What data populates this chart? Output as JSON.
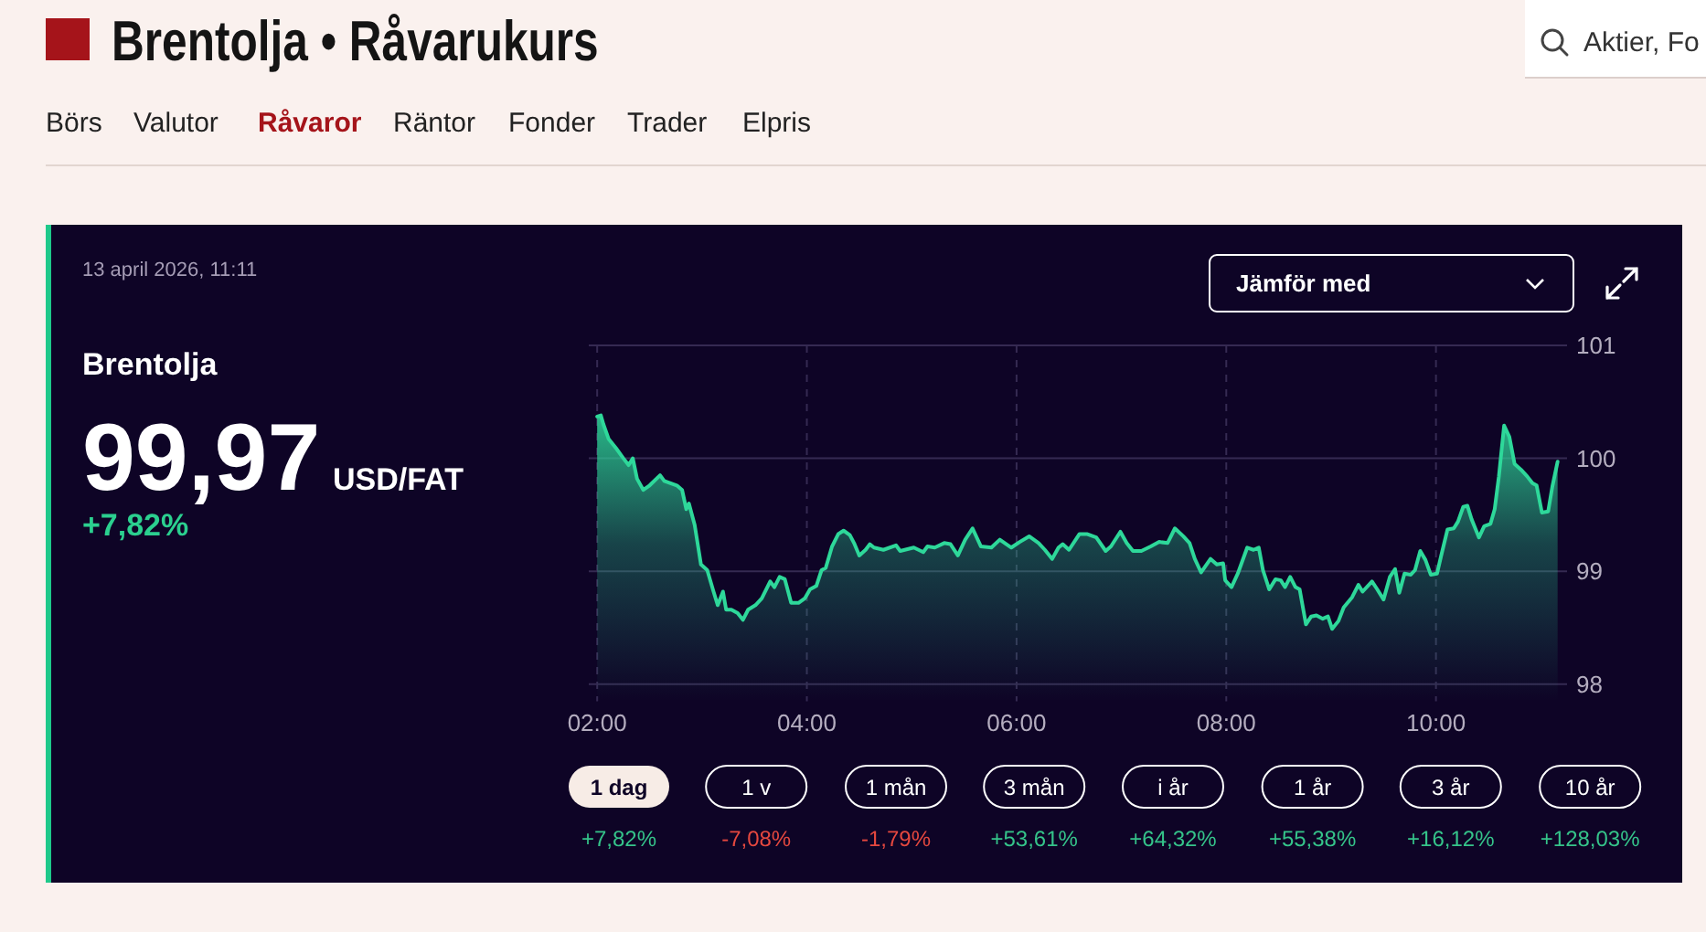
{
  "chart_data": {
    "type": "area",
    "title": "Brentolja • Råvarukurs",
    "annotations": [
      "Börs",
      "Valutor",
      "Råvaror",
      "Räntor",
      "Fonder",
      "Trader",
      "Elpris",
      "Aktier, Fo",
      "13 april 2026, 11:11",
      "Brentolja",
      "99,97",
      "USD/FAT",
      "+7,82%",
      "Jämför med",
      "1 dag",
      "1 v",
      "1 mån",
      "3 mån",
      "i år",
      "1 år",
      "3 år",
      "10 år",
      "+7,82%",
      "-7,08%",
      "-1,79%",
      "+53,61%",
      "+64,32%",
      "+55,38%",
      "+16,12%",
      "+128,03%"
    ],
    "x": [
      2.0,
      2.035,
      2.06,
      2.11,
      2.18,
      2.25,
      2.3,
      2.34,
      2.38,
      2.44,
      2.5,
      2.6,
      2.64,
      2.7,
      2.76,
      2.81,
      2.85,
      2.875,
      2.93,
      2.99,
      3.05,
      3.11,
      3.15,
      3.2,
      3.23,
      3.28,
      3.34,
      3.39,
      3.44,
      3.51,
      3.57,
      3.65,
      3.69,
      3.74,
      3.79,
      3.85,
      3.92,
      3.98,
      4.03,
      4.09,
      4.14,
      4.18,
      4.24,
      4.3,
      4.35,
      4.41,
      4.45,
      4.5,
      4.56,
      4.6,
      4.64,
      4.73,
      4.85,
      4.89,
      5.02,
      5.11,
      5.15,
      5.22,
      5.31,
      5.37,
      5.44,
      5.51,
      5.58,
      5.66,
      5.76,
      5.84,
      5.95,
      6.03,
      6.12,
      6.21,
      6.27,
      6.34,
      6.4,
      6.44,
      6.5,
      6.6,
      6.67,
      6.76,
      6.85,
      6.9,
      6.99,
      7.05,
      7.11,
      7.19,
      7.28,
      7.36,
      7.44,
      7.51,
      7.59,
      7.65,
      7.7,
      7.76,
      7.85,
      7.91,
      7.97,
      7.99,
      8.05,
      8.11,
      8.2,
      8.26,
      8.31,
      8.35,
      8.41,
      8.47,
      8.52,
      8.56,
      8.61,
      8.66,
      8.7,
      8.76,
      8.81,
      8.86,
      8.92,
      8.97,
      9.01,
      9.07,
      9.12,
      9.2,
      9.26,
      9.3,
      9.39,
      9.44,
      9.5,
      9.56,
      9.61,
      9.65,
      9.7,
      9.76,
      9.8,
      9.85,
      9.9,
      9.95,
      10.01,
      10.05,
      10.11,
      10.17,
      10.21,
      10.26,
      10.3,
      10.34,
      10.41,
      10.46,
      10.52,
      10.56,
      10.6,
      10.65,
      10.7,
      10.75,
      10.81,
      10.87,
      10.92,
      10.96,
      11.01,
      11.07,
      11.11,
      11.16
    ],
    "values": [
      100.37,
      100.38,
      100.3,
      100.17,
      100.09,
      100.0,
      99.94,
      100.0,
      99.82,
      99.72,
      99.76,
      99.85,
      99.8,
      99.78,
      99.76,
      99.72,
      99.55,
      99.6,
      99.41,
      99.06,
      99.01,
      98.82,
      98.7,
      98.82,
      98.66,
      98.66,
      98.63,
      98.57,
      98.66,
      98.7,
      98.76,
      98.91,
      98.86,
      98.95,
      98.93,
      98.72,
      98.72,
      98.76,
      98.84,
      98.87,
      99.01,
      99.03,
      99.22,
      99.33,
      99.36,
      99.32,
      99.25,
      99.14,
      99.19,
      99.24,
      99.21,
      99.19,
      99.23,
      99.18,
      99.21,
      99.17,
      99.22,
      99.21,
      99.25,
      99.24,
      99.14,
      99.28,
      99.38,
      99.22,
      99.21,
      99.28,
      99.21,
      99.26,
      99.31,
      99.25,
      99.19,
      99.11,
      99.21,
      99.24,
      99.19,
      99.33,
      99.33,
      99.3,
      99.18,
      99.22,
      99.35,
      99.25,
      99.18,
      99.18,
      99.22,
      99.26,
      99.25,
      99.38,
      99.31,
      99.25,
      99.11,
      98.99,
      99.11,
      99.06,
      99.07,
      98.92,
      98.86,
      98.98,
      99.21,
      99.19,
      99.21,
      99.01,
      98.84,
      98.93,
      98.92,
      98.86,
      98.95,
      98.86,
      98.84,
      98.53,
      98.6,
      98.61,
      98.58,
      98.6,
      98.49,
      98.56,
      98.68,
      98.77,
      98.88,
      98.82,
      98.91,
      98.84,
      98.75,
      98.95,
      99.02,
      98.81,
      98.98,
      98.97,
      99.01,
      99.18,
      99.1,
      98.97,
      98.98,
      99.14,
      99.37,
      99.38,
      99.44,
      99.57,
      99.58,
      99.46,
      99.3,
      99.4,
      99.42,
      99.55,
      99.84,
      100.29,
      100.19,
      99.95,
      99.9,
      99.84,
      99.78,
      99.76,
      99.52,
      99.53,
      99.75,
      99.97
    ],
    "color": "#2ed89a",
    "xlim": [
      1.92,
      11.25
    ],
    "ylim": [
      97.85,
      101
    ],
    "xticks": [
      {
        "value": 2,
        "label": "02:00"
      },
      {
        "value": 4,
        "label": "04:00"
      },
      {
        "value": 6,
        "label": "06:00"
      },
      {
        "value": 8,
        "label": "08:00"
      },
      {
        "value": 10,
        "label": "10:00"
      }
    ],
    "yticks": [
      98,
      99,
      100,
      101
    ],
    "grid": true
  }
}
